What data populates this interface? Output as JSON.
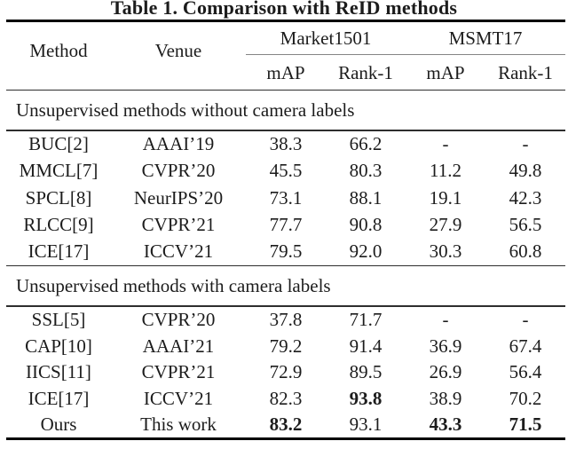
{
  "caption": "Table 1. Comparison with ReID methods",
  "table": {
    "col_headers": {
      "method": "Method",
      "venue": "Venue",
      "group1": "Market1501",
      "group2": "MSMT17",
      "sub": [
        "mAP",
        "Rank-1",
        "mAP",
        "Rank-1"
      ]
    },
    "sections": [
      {
        "label": "Unsupervised methods without camera labels",
        "rows": [
          {
            "method": "BUC[2]",
            "venue": "AAAI’19",
            "market_map": "38.3",
            "market_rank1": "66.2",
            "msmt_map": "-",
            "msmt_rank1": "-"
          },
          {
            "method": "MMCL[7]",
            "venue": "CVPR’20",
            "market_map": "45.5",
            "market_rank1": "80.3",
            "msmt_map": "11.2",
            "msmt_rank1": "49.8"
          },
          {
            "method": "SPCL[8]",
            "venue": "NeurIPS’20",
            "market_map": "73.1",
            "market_rank1": "88.1",
            "msmt_map": "19.1",
            "msmt_rank1": "42.3"
          },
          {
            "method": "RLCC[9]",
            "venue": "CVPR’21",
            "market_map": "77.7",
            "market_rank1": "90.8",
            "msmt_map": "27.9",
            "msmt_rank1": "56.5"
          },
          {
            "method": "ICE[17]",
            "venue": "ICCV’21",
            "market_map": "79.5",
            "market_rank1": "92.0",
            "msmt_map": "30.3",
            "msmt_rank1": "60.8"
          }
        ]
      },
      {
        "label": "Unsupervised methods with camera labels",
        "rows": [
          {
            "method": "SSL[5]",
            "venue": "CVPR’20",
            "market_map": "37.8",
            "market_rank1": "71.7",
            "msmt_map": "-",
            "msmt_rank1": "-"
          },
          {
            "method": "CAP[10]",
            "venue": "AAAI’21",
            "market_map": "79.2",
            "market_rank1": "91.4",
            "msmt_map": "36.9",
            "msmt_rank1": "67.4"
          },
          {
            "method": "IICS[11]",
            "venue": "CVPR’21",
            "market_map": "72.9",
            "market_rank1": "89.5",
            "msmt_map": "26.9",
            "msmt_rank1": "56.4"
          },
          {
            "method": "ICE[17]",
            "venue": "ICCV’21",
            "market_map": "82.3",
            "market_rank1": "93.8",
            "msmt_map": "38.9",
            "msmt_rank1": "70.2"
          },
          {
            "method": "Ours",
            "venue": "This work",
            "market_map": "83.2",
            "market_rank1": "93.1",
            "msmt_map": "43.3",
            "msmt_rank1": "71.5"
          }
        ]
      }
    ]
  },
  "colors": {
    "text": "#1c1c1c",
    "thick_rule": "#000000",
    "mid_rule": "#2e2e2e",
    "cmid_rule": "#848484",
    "background": "#ffffff"
  }
}
